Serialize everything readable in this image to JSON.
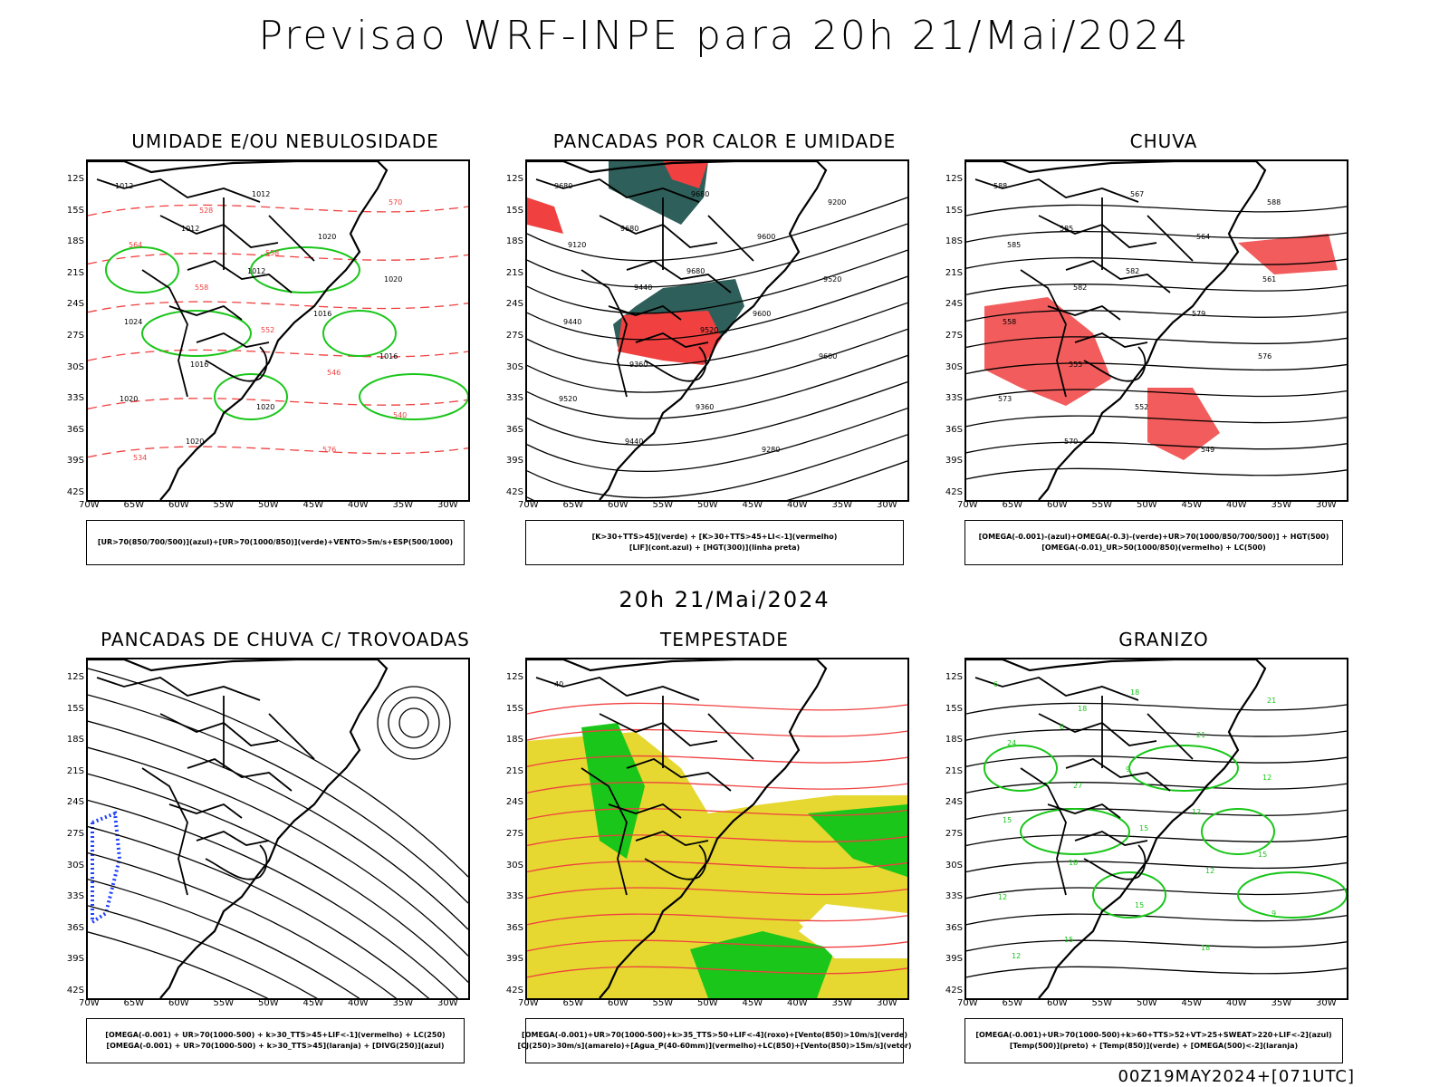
{
  "header": {
    "title": "Previsao WRF-INPE  para 20h 21/Mai/2024",
    "mid_time": "20h 21/Mai/2024",
    "footer": "00Z19MAY2024+[071UTC]"
  },
  "axes": {
    "lat_labels": [
      "12S",
      "15S",
      "18S",
      "21S",
      "24S",
      "27S",
      "30S",
      "33S",
      "36S",
      "39S",
      "42S"
    ],
    "lon_labels": [
      "70W",
      "65W",
      "60W",
      "55W",
      "50W",
      "45W",
      "40W",
      "35W",
      "30W"
    ]
  },
  "colors": {
    "green": "#19c619",
    "red": "#f04040",
    "blue": "#2040ff",
    "lavender": "#b0b0f0",
    "darkteal": "#2f5f5a",
    "yellow": "#e6d830",
    "orange": "#e08020"
  },
  "panels": [
    {
      "title": "UMIDADE E/OU NEBULOSIDADE",
      "legend": [
        "[UR>70(850/700/500)](azul)+[UR>70(1000/850)](verde)+VENTO>5m/s+ESP(500/1000)"
      ],
      "contour_labels": [
        "1012",
        "1012",
        "1012",
        "1016",
        "1016",
        "1020",
        "1020",
        "1012",
        "1020",
        "1020",
        "1024",
        "1016",
        "1020",
        "576",
        "570",
        "564",
        "558",
        "552",
        "546",
        "540",
        "534",
        "528",
        "558"
      ]
    },
    {
      "title": "PANCADAS POR CALOR E UMIDADE",
      "legend": [
        "[K>30+TTS>45](verde) + [K>30+TTS>45+LI<-1](vermelho)",
        "[LIF](cont.azul) + [HGT(300)](linha preta)"
      ],
      "contour_labels": [
        "9680",
        "9680",
        "9680",
        "9600",
        "9600",
        "9520",
        "9440",
        "9680",
        "9600",
        "9520",
        "9440",
        "9360",
        "9360",
        "9280",
        "9200",
        "9120",
        "9440",
        "9520"
      ]
    },
    {
      "title": "CHUVA",
      "legend": [
        "[OMEGA(-0.001)-(azul)+OMEGA(-0.3)-(verde)+UR>70(1000/850/700/500)] + HGT(500)",
        "[OMEGA(-0.01)_UR>50(1000/850)(vermelho) + LC(500)"
      ],
      "contour_labels": [
        "588",
        "585",
        "582",
        "579",
        "576",
        "573",
        "570",
        "567",
        "564",
        "561",
        "558",
        "555",
        "552",
        "549",
        "588",
        "585",
        "582"
      ]
    },
    {
      "title": "PANCADAS DE CHUVA C/ TROVOADAS",
      "legend": [
        "[OMEGA(-0.001) + UR>70(1000-500) + k>30_TTS>45+LIF<-1](vermelho) + LC(250)",
        "[OMEGA(-0.001) + UR>70(1000-500) + k>30_TTS>45](laranja) + [DIVG(250)](azul)"
      ],
      "contour_labels": []
    },
    {
      "title": "TEMPESTADE",
      "legend": [
        "[OMEGA(-0.001)+UR>70(1000-500)+k>35_TTS>50+LIF<-4](roxo)+[Vento(850)>10m/s](verde)",
        "[CJ(250)>30m/s](amarelo)+[Agua_P(40-60mm)](vermelho)+LC(850)+[Vento(850)>15m/s](vetor)"
      ],
      "contour_labels": [
        "40"
      ]
    },
    {
      "title": "GRANIZO",
      "legend": [
        "[OMEGA(-0.001)+UR>70(1000-500)+k>60+TTS>52+VT>25+SWEAT>220+LIF<-2](azul)",
        "[Temp(500)](preto) + [Temp(850)](verde) + [OMEGA(500)<-2](laranja)"
      ],
      "contour_labels": [
        "6",
        "6",
        "9",
        "12",
        "15",
        "12",
        "15",
        "18",
        "21",
        "12",
        "15",
        "18",
        "15",
        "18",
        "21",
        "24",
        "27",
        "15",
        "12",
        "9",
        "12",
        "18"
      ]
    }
  ]
}
